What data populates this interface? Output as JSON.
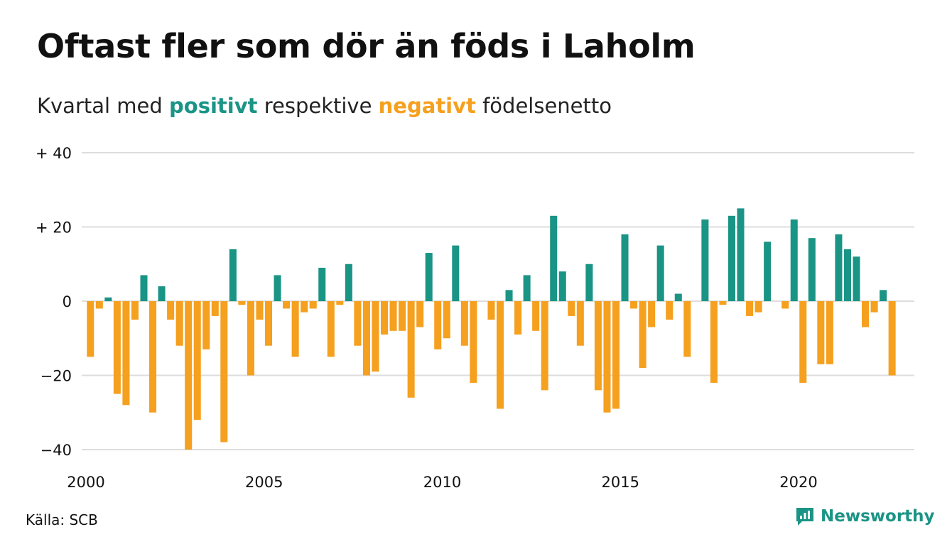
{
  "header": {
    "title": "Oftast fler som dör än föds i Laholm",
    "subtitle_pre": "Kvartal med",
    "subtitle_pos": "positivt",
    "subtitle_mid": "respektive",
    "subtitle_neg": "negativt",
    "subtitle_post": "födelsenetto"
  },
  "footer": {
    "source": "Källa: SCB",
    "brand": "Newsworthy",
    "brand_icon": "newsworthy-logo-icon"
  },
  "colors": {
    "positive": "#1a9485",
    "negative": "#f5a01e",
    "grid": "#dddddd",
    "text": "#111111"
  },
  "chart_data": {
    "type": "bar",
    "x_start": 2000.0,
    "x_step": 0.25,
    "xlim": [
      2000,
      2023.25
    ],
    "ylim": [
      -40,
      40
    ],
    "y_ticks": [
      40,
      20,
      0,
      -20,
      -40
    ],
    "y_tick_labels": [
      "+ 40",
      "+ 20",
      "0",
      "−20",
      "−40"
    ],
    "x_ticks": [
      2000,
      2005,
      2010,
      2015,
      2020
    ],
    "x_tick_labels": [
      "2000",
      "2005",
      "2010",
      "2015",
      "2020"
    ],
    "grid": true,
    "values": [
      -15,
      -2,
      1,
      -25,
      -28,
      -5,
      7,
      -30,
      4,
      -5,
      -12,
      -40,
      -32,
      -13,
      -4,
      -38,
      14,
      -1,
      -20,
      -5,
      -12,
      7,
      -2,
      -15,
      -3,
      -2,
      9,
      -15,
      -1,
      10,
      -12,
      -20,
      -19,
      -9,
      -8,
      -8,
      -26,
      -7,
      13,
      -13,
      -10,
      15,
      -12,
      -22,
      0,
      -5,
      -29,
      3,
      -9,
      7,
      -8,
      -24,
      23,
      8,
      -4,
      -12,
      10,
      -24,
      -30,
      -29,
      18,
      -2,
      -18,
      -7,
      15,
      -5,
      2,
      -15,
      0,
      22,
      -22,
      -1,
      23,
      25,
      -4,
      -3,
      16,
      0,
      -2,
      22,
      -22,
      17,
      -17,
      -17,
      18,
      14,
      12,
      -7,
      -3,
      3,
      -20
    ]
  }
}
